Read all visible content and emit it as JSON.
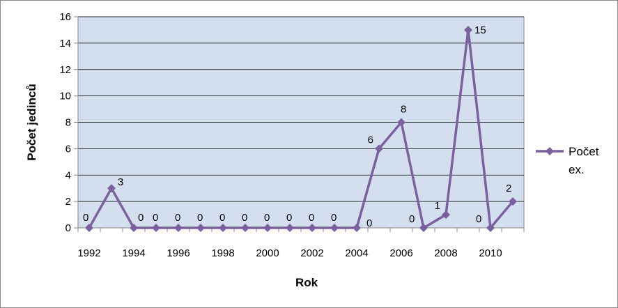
{
  "chart_data": {
    "type": "line",
    "title": "",
    "xlabel": "Rok",
    "ylabel": "Počet jedinců",
    "ylim": [
      0,
      16
    ],
    "yticks": [
      0,
      2,
      4,
      6,
      8,
      10,
      12,
      14,
      16
    ],
    "xlim": [
      1992,
      2011
    ],
    "xtick_labels": [
      "1992",
      "1994",
      "1996",
      "1998",
      "2000",
      "2002",
      "2004",
      "2006",
      "2008",
      "2010"
    ],
    "grid": true,
    "legend": "right",
    "colors": {
      "line": "#7b609e",
      "plot_bg": "#d3dfee",
      "grid": "#000000"
    },
    "series": [
      {
        "name": "Počet ex.",
        "x": [
          1992,
          1993,
          1994,
          1995,
          1996,
          1997,
          1998,
          1999,
          2000,
          2001,
          2002,
          2003,
          2004,
          2005,
          2006,
          2007,
          2008,
          2009,
          2010,
          2011
        ],
        "values": [
          0,
          3,
          0,
          0,
          0,
          0,
          0,
          0,
          0,
          0,
          0,
          0,
          0,
          6,
          8,
          0,
          1,
          15,
          0,
          2
        ],
        "labels": [
          "0",
          "3",
          "0",
          "0",
          "0",
          "0",
          "0",
          "0",
          "0",
          "0",
          "0",
          "0",
          "0",
          "6",
          "8",
          "0",
          "1",
          "15",
          "0",
          "2"
        ]
      }
    ]
  }
}
